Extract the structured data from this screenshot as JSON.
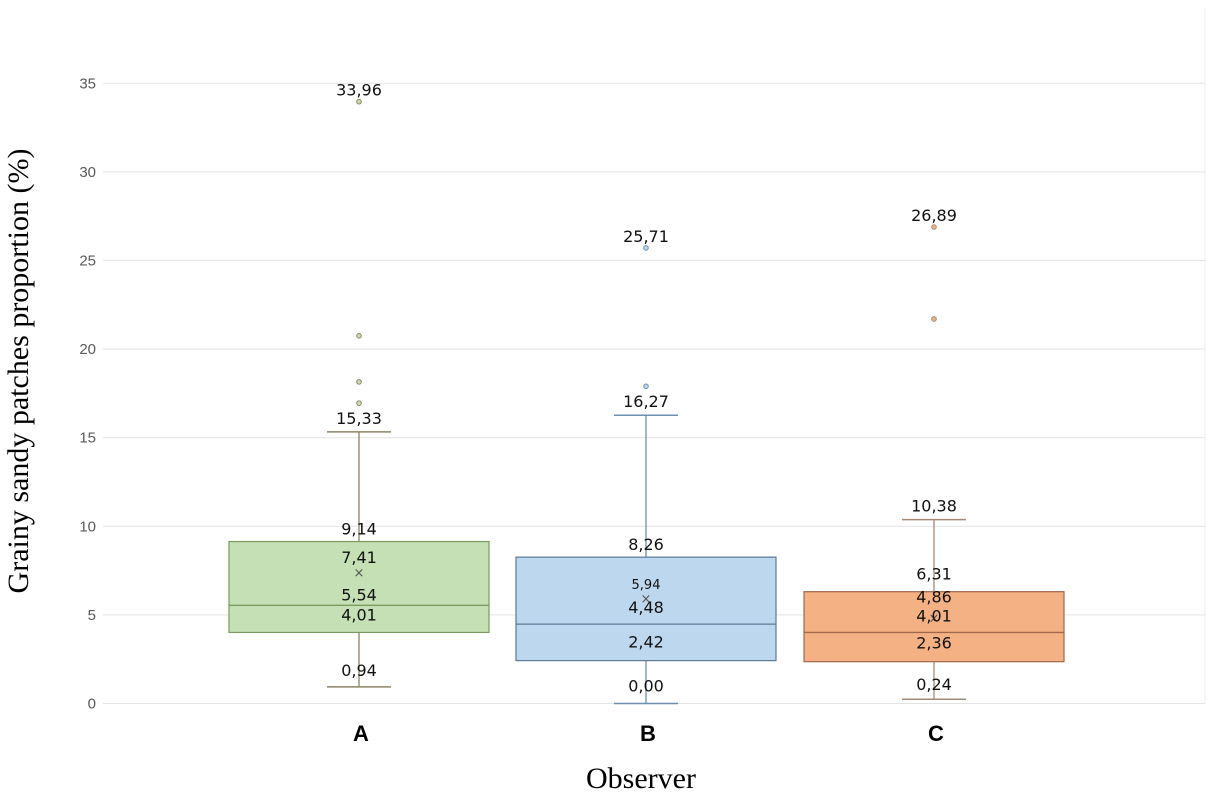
{
  "chart_data": {
    "type": "box",
    "title": "",
    "xlabel": "Observer",
    "ylabel": "Grainy sandy patches proportion (%)",
    "ylim": [
      0,
      38
    ],
    "yticks": [
      0,
      5,
      10,
      15,
      20,
      25,
      30,
      35
    ],
    "ytick_labels": [
      "0",
      "5",
      "10",
      "15",
      "20",
      "25",
      "30",
      "35"
    ],
    "grid": true,
    "legend": "none",
    "categories": [
      "A",
      "B",
      "C"
    ],
    "series": [
      {
        "name": "A",
        "color_fill": "#c5e0b4",
        "color_line": "#7a9a5e",
        "whisker_color": "#8c8466",
        "min": 0.94,
        "q1": 4.01,
        "median": 5.54,
        "q3": 9.14,
        "max": 15.33,
        "mean": 7.41,
        "outliers": [
          16.95,
          18.15,
          20.75,
          33.96
        ],
        "mean_marker": "×",
        "labels": {
          "min": "0,94",
          "q1": "4,01",
          "median": "5,54",
          "mean": "7,41",
          "q3": "9,14",
          "max": "15,33",
          "top_outlier": "33,96"
        }
      },
      {
        "name": "B",
        "color_fill": "#bdd7ee",
        "color_line": "#5b7a96",
        "whisker_color": "#6f8fb0",
        "min": 0.0,
        "q1": 2.42,
        "median": 4.48,
        "q3": 8.26,
        "max": 16.27,
        "mean": 5.94,
        "outliers": [
          17.9,
          25.71
        ],
        "mean_marker": "×",
        "labels": {
          "min": "0,00",
          "q1": "2,42",
          "median": "4,48",
          "mean": "5,94",
          "q3": "8,26",
          "max": "16,27",
          "top_outlier": "25,71"
        }
      },
      {
        "name": "C",
        "color_fill": "#f4b183",
        "color_line": "#a0684a",
        "whisker_color": "#a58a76",
        "min": 0.24,
        "q1": 2.36,
        "median": 4.01,
        "q3": 6.31,
        "max": 10.38,
        "mean": 4.86,
        "outliers": [
          21.7,
          26.89
        ],
        "mean_marker": "×",
        "labels": {
          "min": "0,24",
          "q1": "2,36",
          "median": "4,01",
          "mean": "4,86",
          "q3": "6,31",
          "max": "10,38",
          "top_outlier": "26,89"
        }
      }
    ]
  }
}
